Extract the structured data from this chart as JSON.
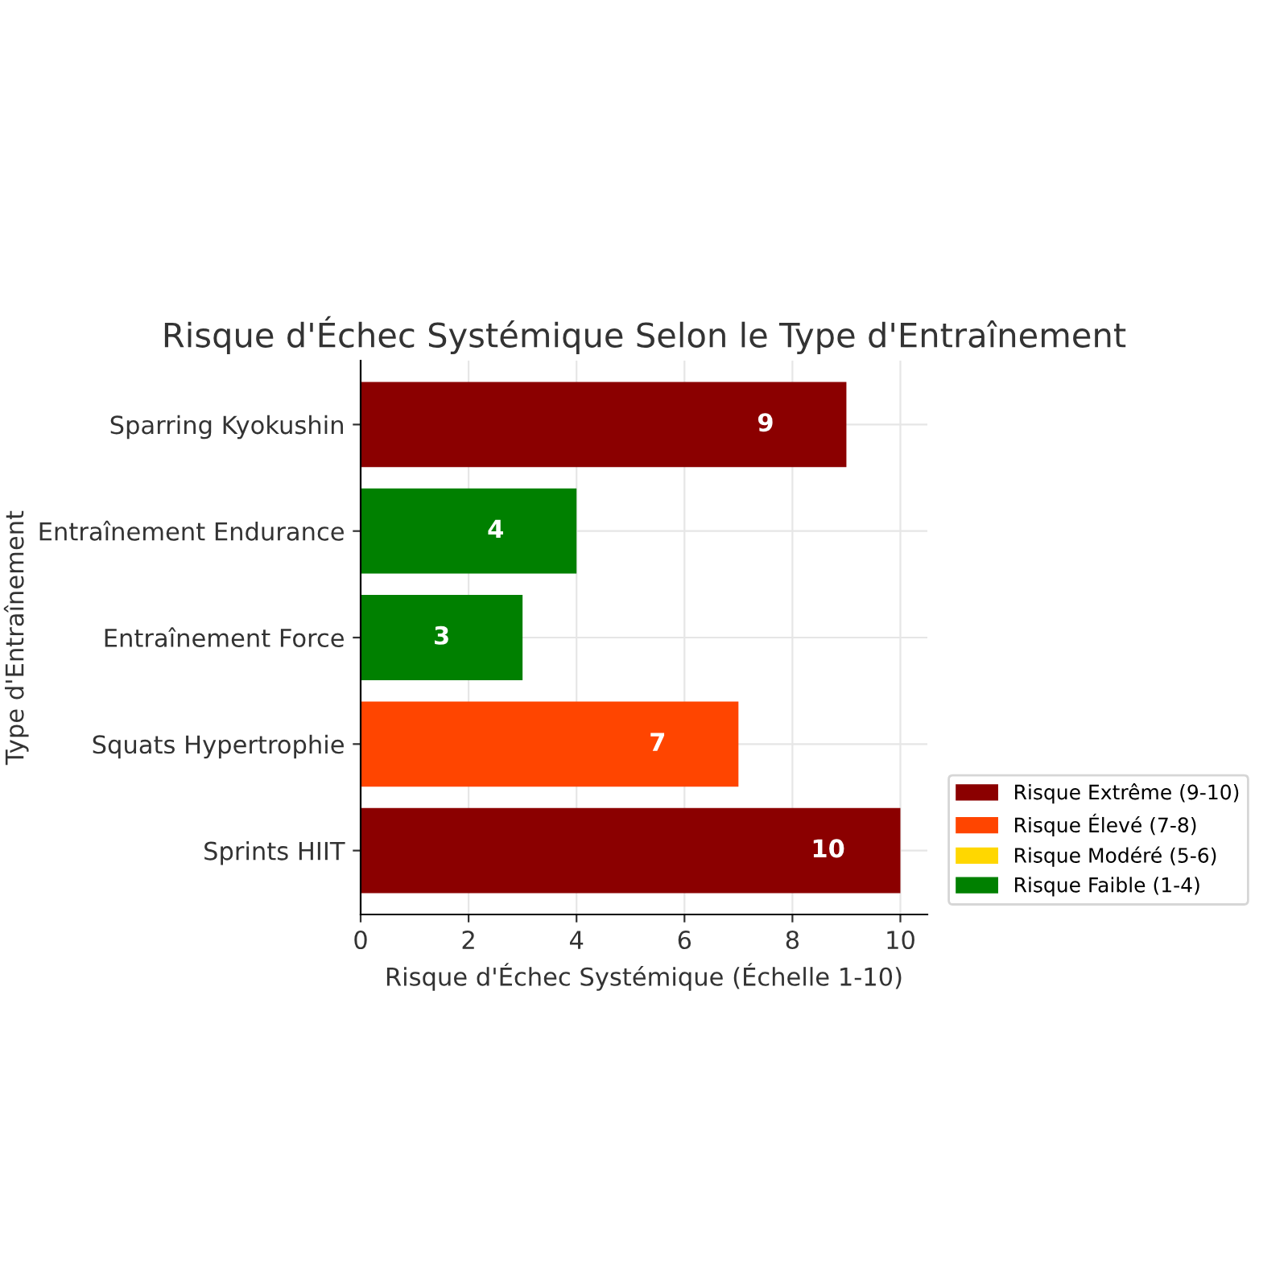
{
  "chart_data": {
    "type": "bar",
    "orientation": "horizontal",
    "title": "Risque d'Échec Systémique Selon le Type d'Entraînement",
    "xlabel": "Risque d'Échec Systémique (Échelle 1-10)",
    "ylabel": "Type d'Entraînement",
    "categories": [
      "Sparring Kyokushin",
      "Entraînement Endurance",
      "Entraînement Force",
      "Squats Hypertrophie",
      "Sprints HIIT"
    ],
    "series": [
      {
        "name": "Risque Extrême (9-10)",
        "color": "#8b0000",
        "values": [
          9,
          null,
          null,
          null,
          10
        ]
      },
      {
        "name": "Risque Élevé (7-8)",
        "color": "#ff4500",
        "values": [
          null,
          null,
          null,
          7,
          null
        ]
      },
      {
        "name": "Risque Modéré (5-6)",
        "color": "#ffd700",
        "values": [
          null,
          null,
          null,
          null,
          null
        ]
      },
      {
        "name": "Risque Faible (1-4)",
        "color": "#008000",
        "values": [
          null,
          4,
          3,
          null,
          null
        ]
      }
    ],
    "xlim": [
      0,
      10.5
    ],
    "xticks": [
      0,
      2,
      4,
      6,
      8,
      10
    ],
    "grid": true,
    "legend": "bottom right",
    "data_labels": true
  }
}
